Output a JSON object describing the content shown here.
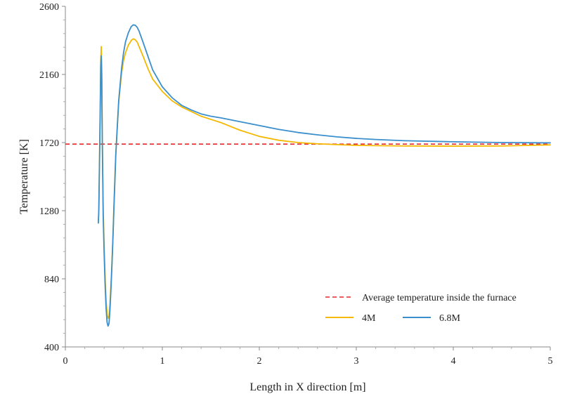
{
  "chart_data": {
    "type": "line",
    "title": "",
    "xlabel": "Length in X direction [m]",
    "ylabel": "Temperature [K]",
    "xlim": [
      0,
      5
    ],
    "ylim": [
      400,
      2600
    ],
    "xticks": [
      "0",
      "1",
      "2",
      "3",
      "4",
      "5"
    ],
    "xtick_values": [
      0,
      1,
      2,
      3,
      4,
      5
    ],
    "yticks": [
      "400",
      "840",
      "1280",
      "1720",
      "2160",
      "2600"
    ],
    "ytick_values": [
      400,
      840,
      1280,
      1720,
      2160,
      2600
    ],
    "grid": false,
    "legend_position": "bottom-right",
    "reference_line": {
      "name": "Average temperature inside the furnace",
      "y": 1710,
      "style": "dashed",
      "color": "#e8262a"
    },
    "series": [
      {
        "name": "4M",
        "color": "#f5b800",
        "x": [
          0.34,
          0.345,
          0.35,
          0.36,
          0.365,
          0.37,
          0.375,
          0.38,
          0.39,
          0.4,
          0.41,
          0.42,
          0.43,
          0.44,
          0.45,
          0.46,
          0.47,
          0.48,
          0.49,
          0.5,
          0.52,
          0.55,
          0.58,
          0.6,
          0.62,
          0.65,
          0.68,
          0.7,
          0.72,
          0.74,
          0.76,
          0.8,
          0.85,
          0.9,
          1.0,
          1.1,
          1.2,
          1.3,
          1.4,
          1.5,
          1.6,
          1.8,
          2.0,
          2.2,
          2.4,
          2.6,
          2.8,
          3.0,
          3.2,
          3.5,
          4.0,
          4.5,
          5.0
        ],
        "y": [
          1210,
          1290,
          1520,
          1980,
          2240,
          2340,
          2200,
          1800,
          1300,
          1050,
          850,
          700,
          610,
          585,
          600,
          680,
          800,
          940,
          1100,
          1300,
          1650,
          1980,
          2170,
          2250,
          2300,
          2350,
          2380,
          2390,
          2385,
          2370,
          2340,
          2280,
          2200,
          2130,
          2050,
          1990,
          1950,
          1920,
          1890,
          1870,
          1850,
          1800,
          1760,
          1735,
          1720,
          1712,
          1707,
          1702,
          1700,
          1698,
          1697,
          1698,
          1705
        ]
      },
      {
        "name": "6.8M",
        "color": "#3a8fcc",
        "x": [
          0.34,
          0.345,
          0.35,
          0.36,
          0.365,
          0.37,
          0.375,
          0.38,
          0.39,
          0.4,
          0.41,
          0.42,
          0.43,
          0.44,
          0.45,
          0.46,
          0.47,
          0.48,
          0.49,
          0.5,
          0.52,
          0.55,
          0.58,
          0.6,
          0.62,
          0.65,
          0.68,
          0.7,
          0.72,
          0.74,
          0.76,
          0.8,
          0.85,
          0.9,
          1.0,
          1.1,
          1.2,
          1.3,
          1.4,
          1.5,
          1.6,
          1.8,
          2.0,
          2.2,
          2.4,
          2.6,
          2.8,
          3.0,
          3.2,
          3.5,
          4.0,
          4.5,
          5.0
        ],
        "y": [
          1200,
          1280,
          1500,
          1950,
          2220,
          2280,
          2150,
          1780,
          1250,
          1000,
          800,
          650,
          560,
          535,
          550,
          640,
          770,
          920,
          1090,
          1280,
          1640,
          1990,
          2200,
          2300,
          2370,
          2430,
          2470,
          2480,
          2478,
          2465,
          2440,
          2370,
          2280,
          2190,
          2080,
          2010,
          1960,
          1930,
          1905,
          1890,
          1880,
          1855,
          1830,
          1805,
          1785,
          1770,
          1757,
          1747,
          1740,
          1732,
          1725,
          1720,
          1718
        ]
      }
    ]
  }
}
